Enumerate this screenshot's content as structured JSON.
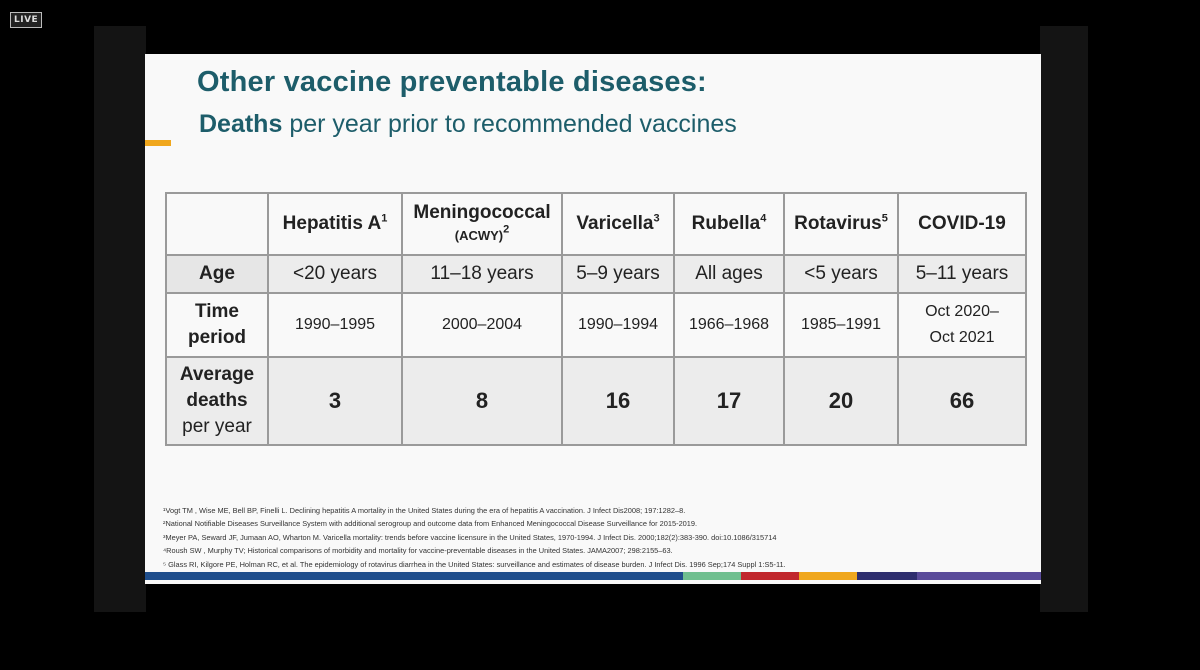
{
  "badge": "LIVE",
  "slide": {
    "title": "Other vaccine preventable diseases:",
    "subtitle_bold": "Deaths",
    "subtitle_rest": " per year prior to recommended vaccines"
  },
  "table": {
    "headers": [
      {
        "label": "Hepatitis A",
        "sup": "1"
      },
      {
        "label": "Meningococcal",
        "sub": "(ACWY)",
        "sup": "2"
      },
      {
        "label": "Varicella",
        "sup": "3"
      },
      {
        "label": "Rubella",
        "sup": "4"
      },
      {
        "label": "Rotavirus",
        "sup": "5"
      },
      {
        "label": "COVID-19"
      }
    ],
    "row_labels": {
      "age": "Age",
      "time_line1": "Time",
      "time_line2": "period",
      "deaths_line1": "Average",
      "deaths_line2": "deaths",
      "deaths_line3": "per year"
    },
    "age": [
      "<20 years",
      "11–18 years",
      "5–9 years",
      "All ages",
      "<5 years",
      "5–11 years"
    ],
    "time_period": [
      [
        "1990–1995"
      ],
      [
        "2000–2004"
      ],
      [
        "1990–1994"
      ],
      [
        "1966–1968"
      ],
      [
        "1985–1991"
      ],
      [
        "Oct 2020–",
        "Oct 2021"
      ]
    ],
    "deaths": [
      "3",
      "8",
      "16",
      "17",
      "20",
      "66"
    ]
  },
  "footnotes": [
    "¹Vogt TM , Wise ME, Bell BP, Finelli L. Declining hepatitis A mortality in the United States during the era of hepatitis A vaccination. J Infect Dis2008; 197:1282–8.",
    "²National Notifiable Diseases Surveillance System with additional serogroup and outcome data from Enhanced Meningococcal Disease Surveillance for 2015-2019.",
    "³Meyer PA, Seward JF, Jumaan AO, Wharton M. Varicella mortality: trends before vaccine licensure in the United States, 1970-1994. J Infect Dis. 2000;182(2):383-390. doi:10.1086/315714",
    "⁴Roush SW , Murphy TV; Historical comparisons of morbidity and mortality for vaccine-preventable diseases in the United States. JAMA2007; 298:2155–63.",
    "⁵ Glass RI, Kilgore PE, Holman RC, et al. The epidemiology of rotavirus diarrhea in the United States: surveillance and estimates of disease burden. J Infect Dis. 1996 Sep;174 Suppl 1:S5-11."
  ],
  "colors": {
    "title": "#1d5d6a",
    "accent": "#f0a71d",
    "stripe": [
      "#1f4e8c",
      "#6fbf8f",
      "#c1272d",
      "#f0a71d",
      "#2e2e6e",
      "#5a4b9a"
    ]
  }
}
